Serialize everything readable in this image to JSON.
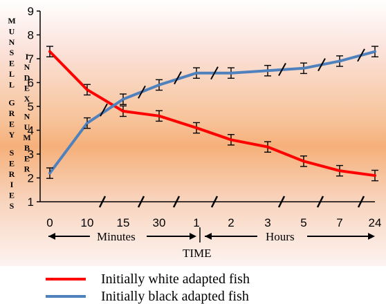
{
  "chart_data": {
    "type": "line",
    "categories": [
      "0",
      "10",
      "15",
      "30",
      "1",
      "2",
      "3",
      "5",
      "7",
      "24"
    ],
    "ylim": [
      1,
      9
    ],
    "yticks": [
      "1",
      "2",
      "3",
      "4",
      "5",
      "6",
      "7",
      "8",
      "9"
    ],
    "ylabel_left": "MUNSELL GREY SERIES",
    "ylabel_right": "INDEX NUMBER",
    "xlabel": "TIME",
    "range_labels": {
      "minutes": "Minutes",
      "hours": "Hours"
    },
    "series": [
      {
        "name": "Initially white adapted fish",
        "color": "#ff0000",
        "values": [
          7.3,
          5.7,
          4.8,
          4.6,
          4.1,
          3.6,
          3.3,
          2.7,
          2.3,
          2.1
        ]
      },
      {
        "name": "Initially black adapted fish",
        "color": "#4f81bd",
        "values": [
          2.2,
          4.3,
          5.3,
          5.9,
          6.4,
          6.4,
          6.5,
          6.6,
          6.9,
          7.3
        ]
      }
    ],
    "error_bar": 0.22,
    "grid": false,
    "legend_position": "bottom-left"
  }
}
